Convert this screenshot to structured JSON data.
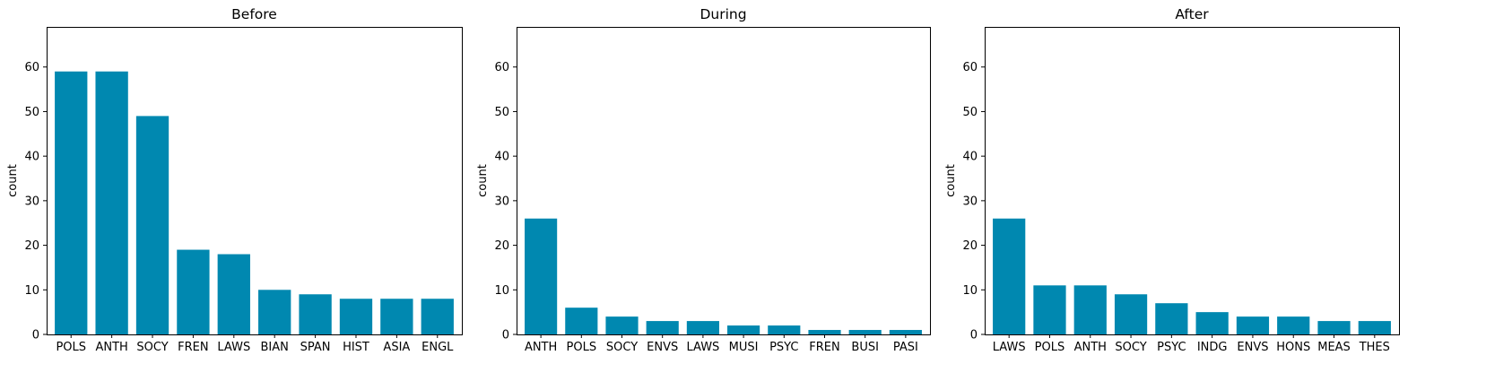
{
  "bar_color": "#0088b0",
  "chart_data": [
    {
      "type": "bar",
      "title": "Before",
      "xlabel": "",
      "ylabel": "count",
      "ylim": [
        0,
        69
      ],
      "yticks": [
        0,
        10,
        20,
        30,
        40,
        50,
        60
      ],
      "categories": [
        "POLS",
        "ANTH",
        "SOCY",
        "FREN",
        "LAWS",
        "BIAN",
        "SPAN",
        "HIST",
        "ASIA",
        "ENGL"
      ],
      "values": [
        59,
        59,
        49,
        19,
        18,
        10,
        9,
        8,
        8,
        8
      ],
      "grid": false
    },
    {
      "type": "bar",
      "title": "During",
      "xlabel": "",
      "ylabel": "count",
      "ylim": [
        0,
        69
      ],
      "yticks": [
        0,
        10,
        20,
        30,
        40,
        50,
        60
      ],
      "categories": [
        "ANTH",
        "POLS",
        "SOCY",
        "ENVS",
        "LAWS",
        "MUSI",
        "PSYC",
        "FREN",
        "BUSI",
        "PASI"
      ],
      "values": [
        26,
        6,
        4,
        3,
        3,
        2,
        2,
        1,
        1,
        1
      ],
      "grid": false
    },
    {
      "type": "bar",
      "title": "After",
      "xlabel": "",
      "ylabel": "count",
      "ylim": [
        0,
        69
      ],
      "yticks": [
        0,
        10,
        20,
        30,
        40,
        50,
        60
      ],
      "categories": [
        "LAWS",
        "POLS",
        "ANTH",
        "SOCY",
        "PSYC",
        "INDG",
        "ENVS",
        "HONS",
        "MEAS",
        "THES"
      ],
      "values": [
        26,
        11,
        11,
        9,
        7,
        5,
        4,
        4,
        3,
        3
      ],
      "grid": false
    }
  ]
}
